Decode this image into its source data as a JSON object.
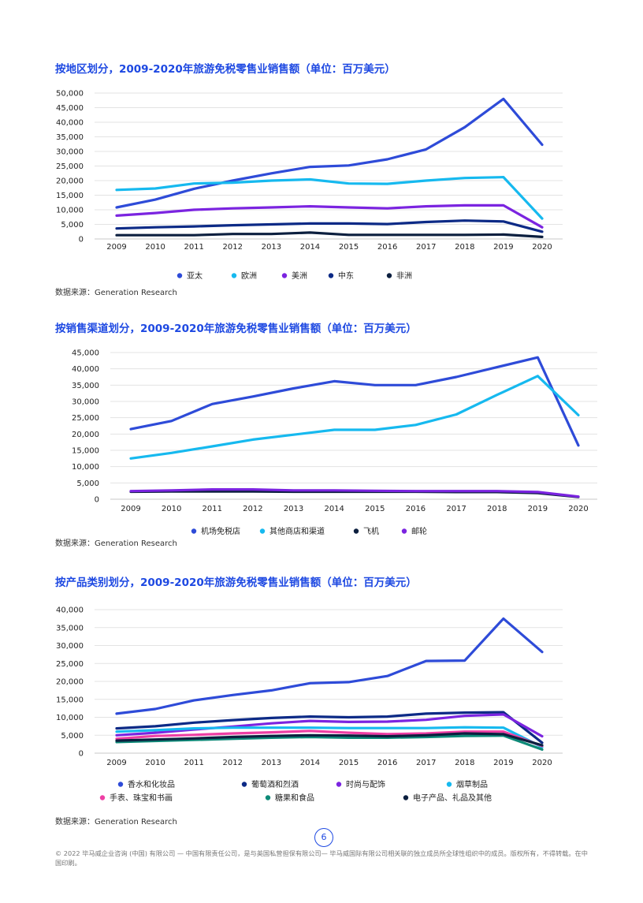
{
  "charts": [
    {
      "title": "按地区划分，2009-2020年旅游免税零售业销售额（单位：百万美元）",
      "source": "数据来源：Generation Research"
    },
    {
      "title": "按销售渠道划分，2009-2020年旅游免税零售业销售额（单位：百万美元）",
      "source": "数据来源：Generation Research"
    },
    {
      "title": "按产品类别划分，2009-2020年旅游免税零售业销售额（单位：百万美元）",
      "source": "数据来源：Generation Research"
    }
  ],
  "chart_data": [
    {
      "type": "line",
      "title": "按地区划分，2009-2020年旅游免税零售业销售额（单位：百万美元）",
      "x": [
        "2009",
        "2010",
        "2011",
        "2012",
        "2013",
        "2014",
        "2015",
        "2016",
        "2017",
        "2018",
        "2019",
        "2020"
      ],
      "ylim": [
        0,
        50000
      ],
      "yticks": [
        "0",
        "5,000",
        "10,000",
        "15,000",
        "20,000",
        "25,000",
        "30,000",
        "35,000",
        "40,000",
        "45,000",
        "50,000"
      ],
      "grid": true,
      "legend": "bottom",
      "series": [
        {
          "name": "亚太",
          "color": "#2e4bd8",
          "values": [
            10800,
            13500,
            17200,
            20000,
            22500,
            24700,
            25200,
            27300,
            30700,
            38300,
            48000,
            32300
          ]
        },
        {
          "name": "欧洲",
          "color": "#16b9ef",
          "values": [
            16800,
            17300,
            19000,
            19300,
            20000,
            20400,
            19000,
            18900,
            20000,
            20900,
            21200,
            7000
          ]
        },
        {
          "name": "美洲",
          "color": "#7b24e0",
          "values": [
            8000,
            8900,
            10000,
            10500,
            10800,
            11200,
            10800,
            10500,
            11200,
            11500,
            11500,
            4000
          ]
        },
        {
          "name": "中东",
          "color": "#0c2a86",
          "values": [
            3600,
            4000,
            4300,
            4700,
            5000,
            5300,
            5300,
            5100,
            5800,
            6300,
            6000,
            2500
          ]
        },
        {
          "name": "非洲",
          "color": "#0c1f3f",
          "values": [
            1300,
            1300,
            1300,
            1700,
            1700,
            2200,
            1400,
            1400,
            1400,
            1400,
            1500,
            700
          ]
        }
      ]
    },
    {
      "type": "line",
      "title": "按销售渠道划分，2009-2020年旅游免税零售业销售额（单位：百万美元）",
      "x": [
        "2009",
        "2010",
        "2011",
        "2012",
        "2013",
        "2014",
        "2015",
        "2016",
        "2017",
        "2018",
        "2019",
        "2020"
      ],
      "ylim": [
        0,
        45000
      ],
      "yticks": [
        "0",
        "5,000",
        "10,000",
        "15,000",
        "20,000",
        "25,000",
        "30,000",
        "35,000",
        "40,000",
        "45,000"
      ],
      "grid": true,
      "legend": "bottom",
      "series": [
        {
          "name": "机场免税店",
          "color": "#2e4bd8",
          "values": [
            21500,
            24000,
            29200,
            31500,
            34000,
            36200,
            35000,
            35000,
            37500,
            40500,
            43500,
            16500
          ]
        },
        {
          "name": "其他商店和渠道",
          "color": "#16b9ef",
          "values": [
            12500,
            14200,
            16200,
            18300,
            19800,
            21300,
            21300,
            22800,
            26000,
            32000,
            37800,
            25800
          ]
        },
        {
          "name": "飞机",
          "color": "#0c1f3f",
          "values": [
            2300,
            2400,
            2400,
            2400,
            2300,
            2300,
            2300,
            2300,
            2200,
            2200,
            1900,
            700
          ]
        },
        {
          "name": "邮轮",
          "color": "#7b24e0",
          "values": [
            2500,
            2700,
            3000,
            3000,
            2700,
            2700,
            2600,
            2500,
            2500,
            2500,
            2200,
            800
          ]
        }
      ]
    },
    {
      "type": "line",
      "title": "按产品类别划分，2009-2020年旅游免税零售业销售额（单位：百万美元）",
      "x": [
        "2009",
        "2010",
        "2011",
        "2012",
        "2013",
        "2014",
        "2015",
        "2016",
        "2017",
        "2018",
        "2019",
        "2020"
      ],
      "ylim": [
        0,
        40000
      ],
      "yticks": [
        "0",
        "5,000",
        "10,000",
        "15,000",
        "20,000",
        "25,000",
        "30,000",
        "35,000",
        "40,000"
      ],
      "grid": true,
      "legend": "bottom",
      "series": [
        {
          "name": "香水和化妆品",
          "color": "#2e4bd8",
          "values": [
            11000,
            12300,
            14700,
            16200,
            17500,
            19500,
            19800,
            21500,
            25700,
            25800,
            37500,
            28200
          ]
        },
        {
          "name": "葡萄酒和烈酒",
          "color": "#0c2a86",
          "values": [
            6900,
            7500,
            8500,
            9200,
            9800,
            10200,
            10000,
            10200,
            11000,
            11300,
            11400,
            2900
          ]
        },
        {
          "name": "时尚与配饰",
          "color": "#7b24e0",
          "values": [
            5000,
            5700,
            6600,
            7400,
            8300,
            9000,
            8700,
            8800,
            9300,
            10400,
            10800,
            4700
          ]
        },
        {
          "name": "烟草制品",
          "color": "#16b9ef",
          "values": [
            6000,
            6400,
            6900,
            7100,
            7100,
            7100,
            7000,
            7000,
            7000,
            7200,
            7100,
            1700
          ]
        },
        {
          "name": "手表、珠宝和书画",
          "color": "#ee3fa4",
          "values": [
            4000,
            4800,
            5100,
            5500,
            5800,
            6200,
            5700,
            5300,
            5500,
            6000,
            6000,
            2000
          ]
        },
        {
          "name": "糖果和食品",
          "color": "#0e8a78",
          "values": [
            3100,
            3400,
            3700,
            4000,
            4300,
            4500,
            4300,
            4300,
            4500,
            4800,
            4900,
            1000
          ]
        },
        {
          "name": "电子产品、礼品及其他",
          "color": "#0c1f3f",
          "values": [
            3500,
            3800,
            4100,
            4500,
            4800,
            5000,
            4900,
            4700,
            5000,
            5500,
            5300,
            2200
          ]
        }
      ]
    }
  ],
  "footer": {
    "page_number": "6",
    "legal": "© 2022 毕马威企业咨询 (中国) 有限公司 — 中国有限责任公司，是与英国私营担保有限公司— 毕马威国际有限公司相关联的独立成员所全球性组织中的成员。版权所有，不得转载。在中国印刷。"
  }
}
